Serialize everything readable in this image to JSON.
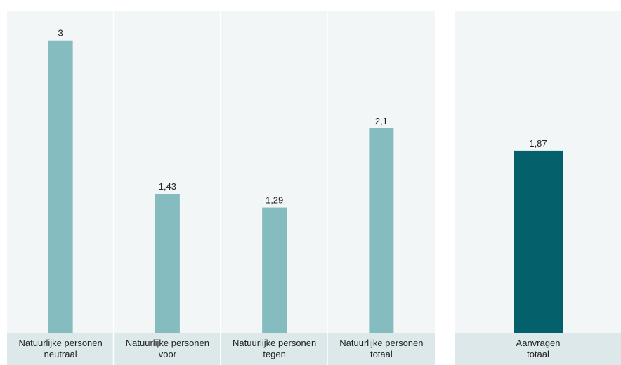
{
  "chart_data": [
    {
      "type": "bar",
      "categories": [
        [
          "Natuurlijke personen",
          "neutraal"
        ],
        [
          "Natuurlijke personen",
          "voor"
        ],
        [
          "Natuurlijke personen",
          "tegen"
        ],
        [
          "Natuurlijke personen",
          "totaal"
        ]
      ],
      "values": [
        3,
        1.43,
        1.29,
        2.1
      ],
      "value_labels": [
        "3",
        "1,43",
        "1,29",
        "2,1"
      ],
      "ylim": [
        0,
        3.3
      ],
      "grid": false,
      "color": "#85bcbf"
    },
    {
      "type": "bar",
      "categories": [
        [
          "Aanvragen",
          "totaal"
        ]
      ],
      "values": [
        1.87
      ],
      "value_labels": [
        "1,87"
      ],
      "ylim": [
        0,
        3.3
      ],
      "grid": false,
      "color": "#04606b"
    }
  ],
  "colors": {
    "panel_background": "#f3f6f6",
    "panel_divider": "#ffffff",
    "label_band": "#dce8e9",
    "text": "#222222"
  }
}
